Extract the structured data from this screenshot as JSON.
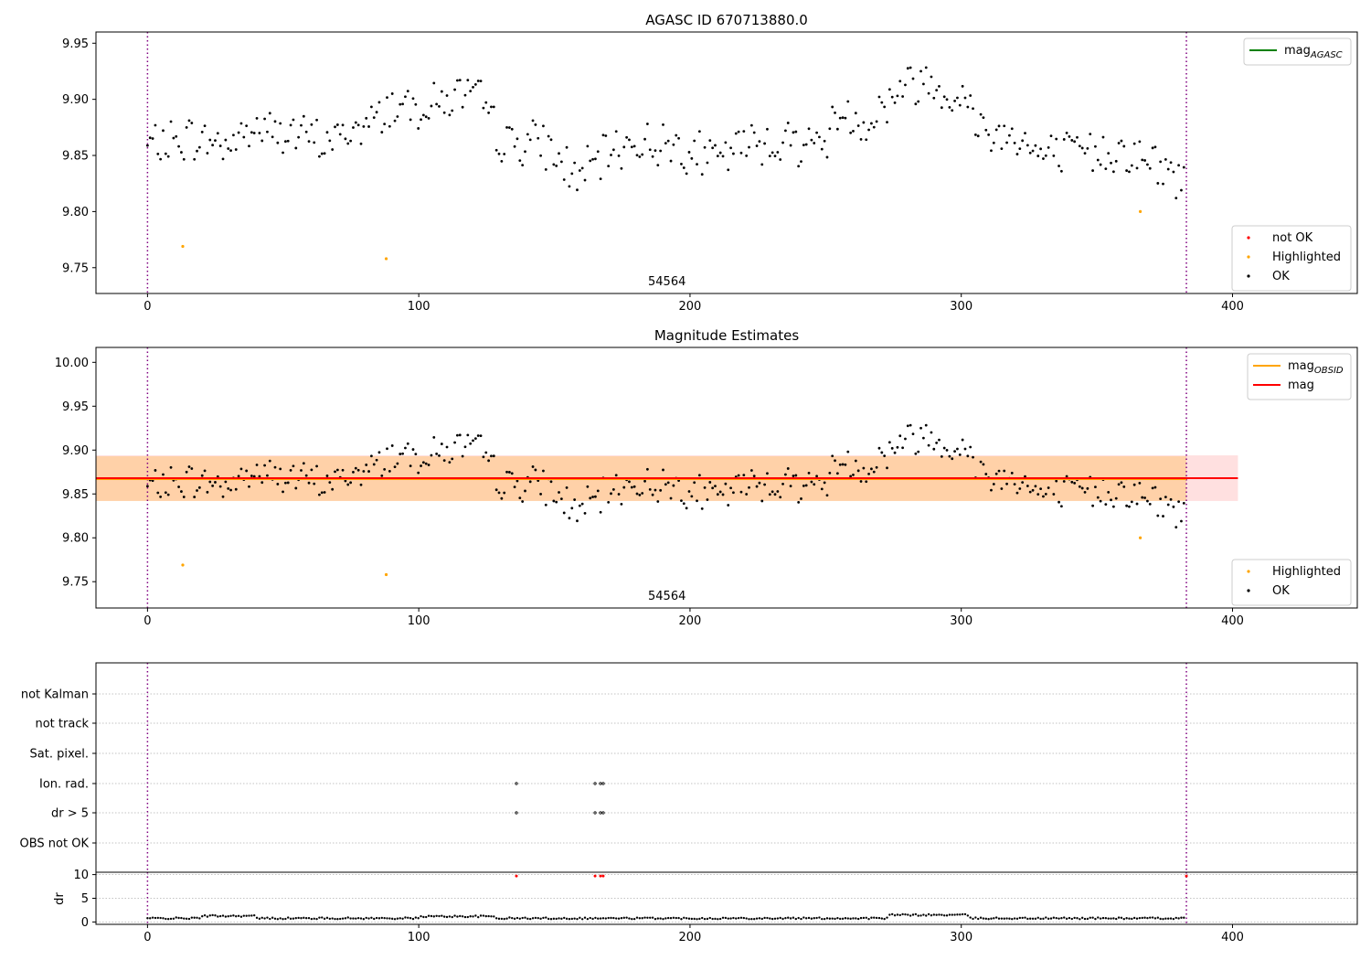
{
  "chart_data": [
    {
      "type": "scatter",
      "title": "AGASC ID 670713880.0",
      "annotation": "54564",
      "xlim": [
        -19,
        446
      ],
      "ylim": [
        9.727,
        9.96
      ],
      "xticks": [
        0,
        100,
        200,
        300,
        400
      ],
      "yticks": [
        9.75,
        9.8,
        9.85,
        9.9,
        9.95
      ],
      "vlines": [
        0,
        383
      ],
      "legend_lines": [
        {
          "label": "mag",
          "sub": "AGASC",
          "color": "#008000"
        }
      ],
      "legend_points": [
        {
          "label": "not OK",
          "color": "#ff0000"
        },
        {
          "label": "Highlighted",
          "color": "#ffa500"
        },
        {
          "label": "OK",
          "color": "#000000"
        }
      ],
      "highlighted": [
        {
          "x": 13,
          "y": 9.769
        },
        {
          "x": 88,
          "y": 9.758
        },
        {
          "x": 366,
          "y": 9.8
        }
      ],
      "grid": false
    },
    {
      "type": "scatter",
      "title": "Magnitude Estimates",
      "annotation": "54564",
      "xlim": [
        -19,
        446
      ],
      "ylim": [
        9.72,
        10.017
      ],
      "xticks": [
        0,
        100,
        200,
        300,
        400
      ],
      "yticks": [
        9.75,
        9.8,
        9.85,
        9.9,
        9.95,
        10.0
      ],
      "vlines": [
        0,
        383
      ],
      "mag_obsid": 9.867,
      "mag_obsid_band": [
        9.842,
        9.893
      ],
      "mag_obsid_xrange": [
        -19,
        383
      ],
      "mag": 9.868,
      "mag_band": [
        9.842,
        9.894
      ],
      "mag_xrange": [
        -19,
        402
      ],
      "legend_lines": [
        {
          "label": "mag",
          "sub": "OBSID",
          "color": "#ffa500"
        },
        {
          "label": "mag",
          "sub": "",
          "color": "#ff0000"
        }
      ],
      "legend_points": [
        {
          "label": "Highlighted",
          "color": "#ffa500"
        },
        {
          "label": "OK",
          "color": "#000000"
        }
      ],
      "grid": false
    },
    {
      "type": "scatter",
      "title": "",
      "xlim": [
        -19,
        446
      ],
      "xticks": [
        0,
        100,
        200,
        300,
        400
      ],
      "vlines": [
        0,
        383
      ],
      "flag_labels": [
        "not Kalman",
        "not track",
        "Sat. pixel.",
        "Ion. rad.",
        "dr > 5",
        "OBS not OK"
      ],
      "flag_points": {
        "Ion. rad.": [
          136,
          165,
          167,
          168
        ],
        "dr > 5": [
          136,
          165,
          167,
          168
        ]
      },
      "dr_label": "dr",
      "dr_ylim": [
        -0.5,
        10.5
      ],
      "dr_yticks": [
        0,
        5,
        10
      ],
      "dr_red_points": [
        {
          "x": 136,
          "y": 9.7
        },
        {
          "x": 165,
          "y": 9.7
        },
        {
          "x": 167,
          "y": 9.7
        },
        {
          "x": 168,
          "y": 9.7
        },
        {
          "x": 383,
          "y": 9.7
        }
      ],
      "grid": true
    }
  ]
}
